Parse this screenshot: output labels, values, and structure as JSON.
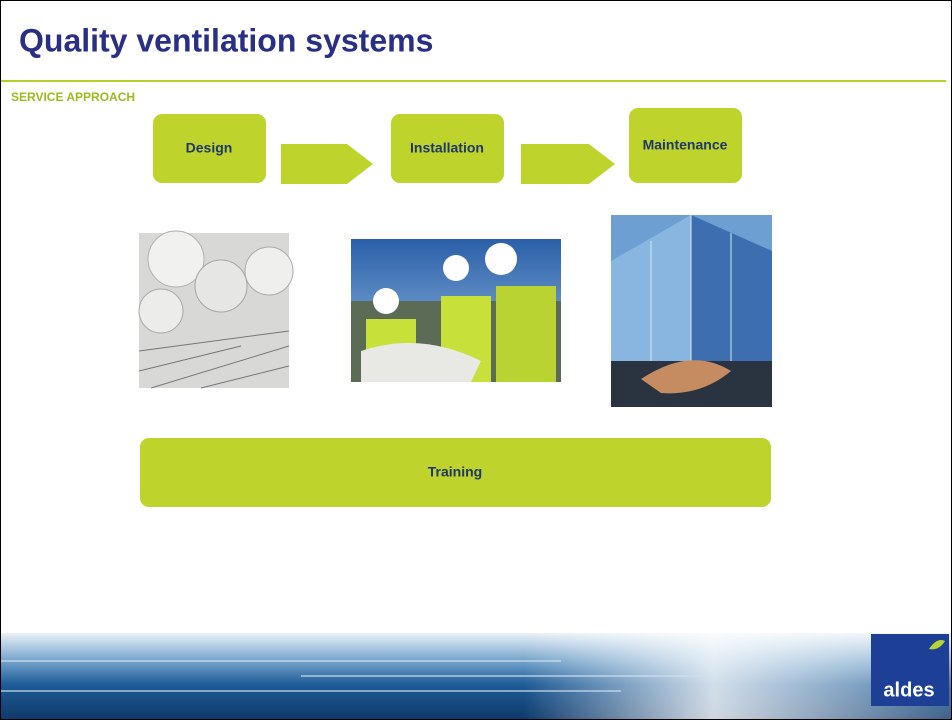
{
  "header": {
    "title": "Quality ventilation systems",
    "subtitle": "SERVICE APPROACH"
  },
  "steps": [
    {
      "label": "Design"
    },
    {
      "label": "Installation"
    },
    {
      "label": "Maintenance"
    }
  ],
  "training": {
    "label": "Training"
  },
  "logo": {
    "label": "aldes"
  }
}
